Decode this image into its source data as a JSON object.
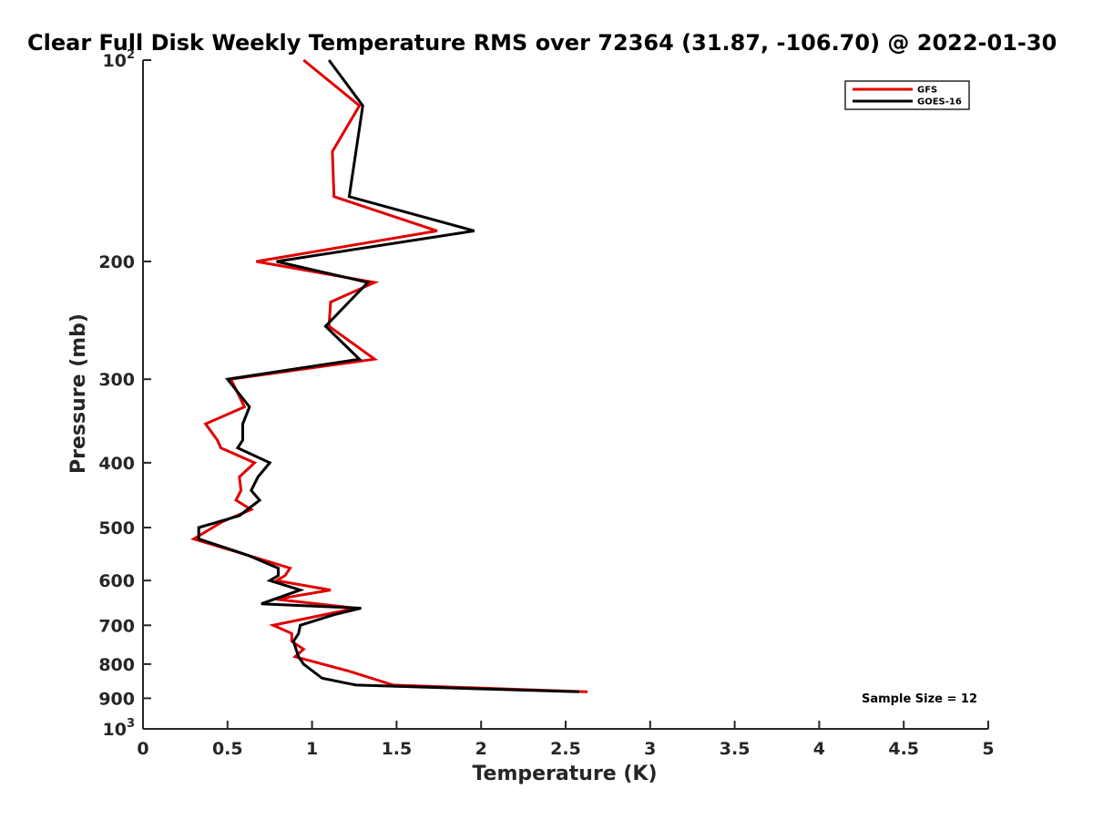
{
  "chart_data": {
    "type": "line",
    "title": "Clear Full Disk Weekly Temperature RMS over 72364 (31.87, -106.70) @ 2022-01-30",
    "xlabel": "Temperature (K)",
    "ylabel": "Pressure (mb)",
    "xlim": [
      0,
      5
    ],
    "ylim": [
      100,
      1000
    ],
    "y_scale": "log",
    "y_reversed": true,
    "grid": false,
    "legend_position": "top-right",
    "annotation": "Sample Size = 12",
    "x_ticks": [
      0,
      0.5,
      1,
      1.5,
      2,
      2.5,
      3,
      3.5,
      4,
      4.5,
      5
    ],
    "x_tick_labels": [
      "0",
      "0.5",
      "1",
      "1.5",
      "2",
      "2.5",
      "3",
      "3.5",
      "4",
      "4.5",
      "5"
    ],
    "y_ticks": [
      100,
      200,
      300,
      400,
      500,
      600,
      700,
      800,
      900,
      1000
    ],
    "y_tick_labels": [
      {
        "base": "10",
        "exp": "2"
      },
      {
        "base": "200",
        "exp": ""
      },
      {
        "base": "300",
        "exp": ""
      },
      {
        "base": "400",
        "exp": ""
      },
      {
        "base": "500",
        "exp": ""
      },
      {
        "base": "600",
        "exp": ""
      },
      {
        "base": "700",
        "exp": ""
      },
      {
        "base": "800",
        "exp": ""
      },
      {
        "base": "900",
        "exp": ""
      },
      {
        "base": "10",
        "exp": "3"
      }
    ],
    "series": [
      {
        "name": "GFS",
        "color": "#e00000",
        "points": [
          [
            0.95,
            100
          ],
          [
            1.28,
            117
          ],
          [
            1.12,
            137
          ],
          [
            1.13,
            160
          ],
          [
            1.74,
            180
          ],
          [
            0.67,
            200
          ],
          [
            1.37,
            215
          ],
          [
            1.11,
            230
          ],
          [
            1.1,
            250
          ],
          [
            1.37,
            280
          ],
          [
            0.52,
            300
          ],
          [
            0.6,
            330
          ],
          [
            0.37,
            350
          ],
          [
            0.44,
            370
          ],
          [
            0.46,
            380
          ],
          [
            0.66,
            400
          ],
          [
            0.57,
            420
          ],
          [
            0.58,
            440
          ],
          [
            0.55,
            455
          ],
          [
            0.64,
            470
          ],
          [
            0.47,
            490
          ],
          [
            0.3,
            520
          ],
          [
            0.62,
            550
          ],
          [
            0.87,
            575
          ],
          [
            0.84,
            590
          ],
          [
            0.79,
            600
          ],
          [
            1.11,
            620
          ],
          [
            0.79,
            640
          ],
          [
            1.26,
            660
          ],
          [
            0.77,
            700
          ],
          [
            0.88,
            720
          ],
          [
            0.88,
            740
          ],
          [
            0.95,
            760
          ],
          [
            0.9,
            780
          ],
          [
            1.22,
            820
          ],
          [
            1.48,
            860
          ],
          [
            2.63,
            880
          ]
        ]
      },
      {
        "name": "GOES-16",
        "color": "#000000",
        "points": [
          [
            1.1,
            100
          ],
          [
            1.3,
            117
          ],
          [
            1.22,
            160
          ],
          [
            1.96,
            180
          ],
          [
            0.79,
            200
          ],
          [
            1.33,
            215
          ],
          [
            1.08,
            250
          ],
          [
            1.28,
            280
          ],
          [
            0.5,
            300
          ],
          [
            0.63,
            330
          ],
          [
            0.59,
            350
          ],
          [
            0.59,
            370
          ],
          [
            0.56,
            380
          ],
          [
            0.75,
            400
          ],
          [
            0.68,
            420
          ],
          [
            0.64,
            440
          ],
          [
            0.69,
            455
          ],
          [
            0.57,
            480
          ],
          [
            0.33,
            500
          ],
          [
            0.33,
            520
          ],
          [
            0.62,
            550
          ],
          [
            0.8,
            575
          ],
          [
            0.8,
            590
          ],
          [
            0.75,
            600
          ],
          [
            0.93,
            620
          ],
          [
            0.7,
            650
          ],
          [
            1.29,
            660
          ],
          [
            1.13,
            675
          ],
          [
            0.93,
            700
          ],
          [
            0.92,
            720
          ],
          [
            0.89,
            740
          ],
          [
            0.92,
            780
          ],
          [
            0.95,
            800
          ],
          [
            1.06,
            840
          ],
          [
            1.26,
            860
          ],
          [
            2.58,
            880
          ]
        ]
      }
    ]
  }
}
